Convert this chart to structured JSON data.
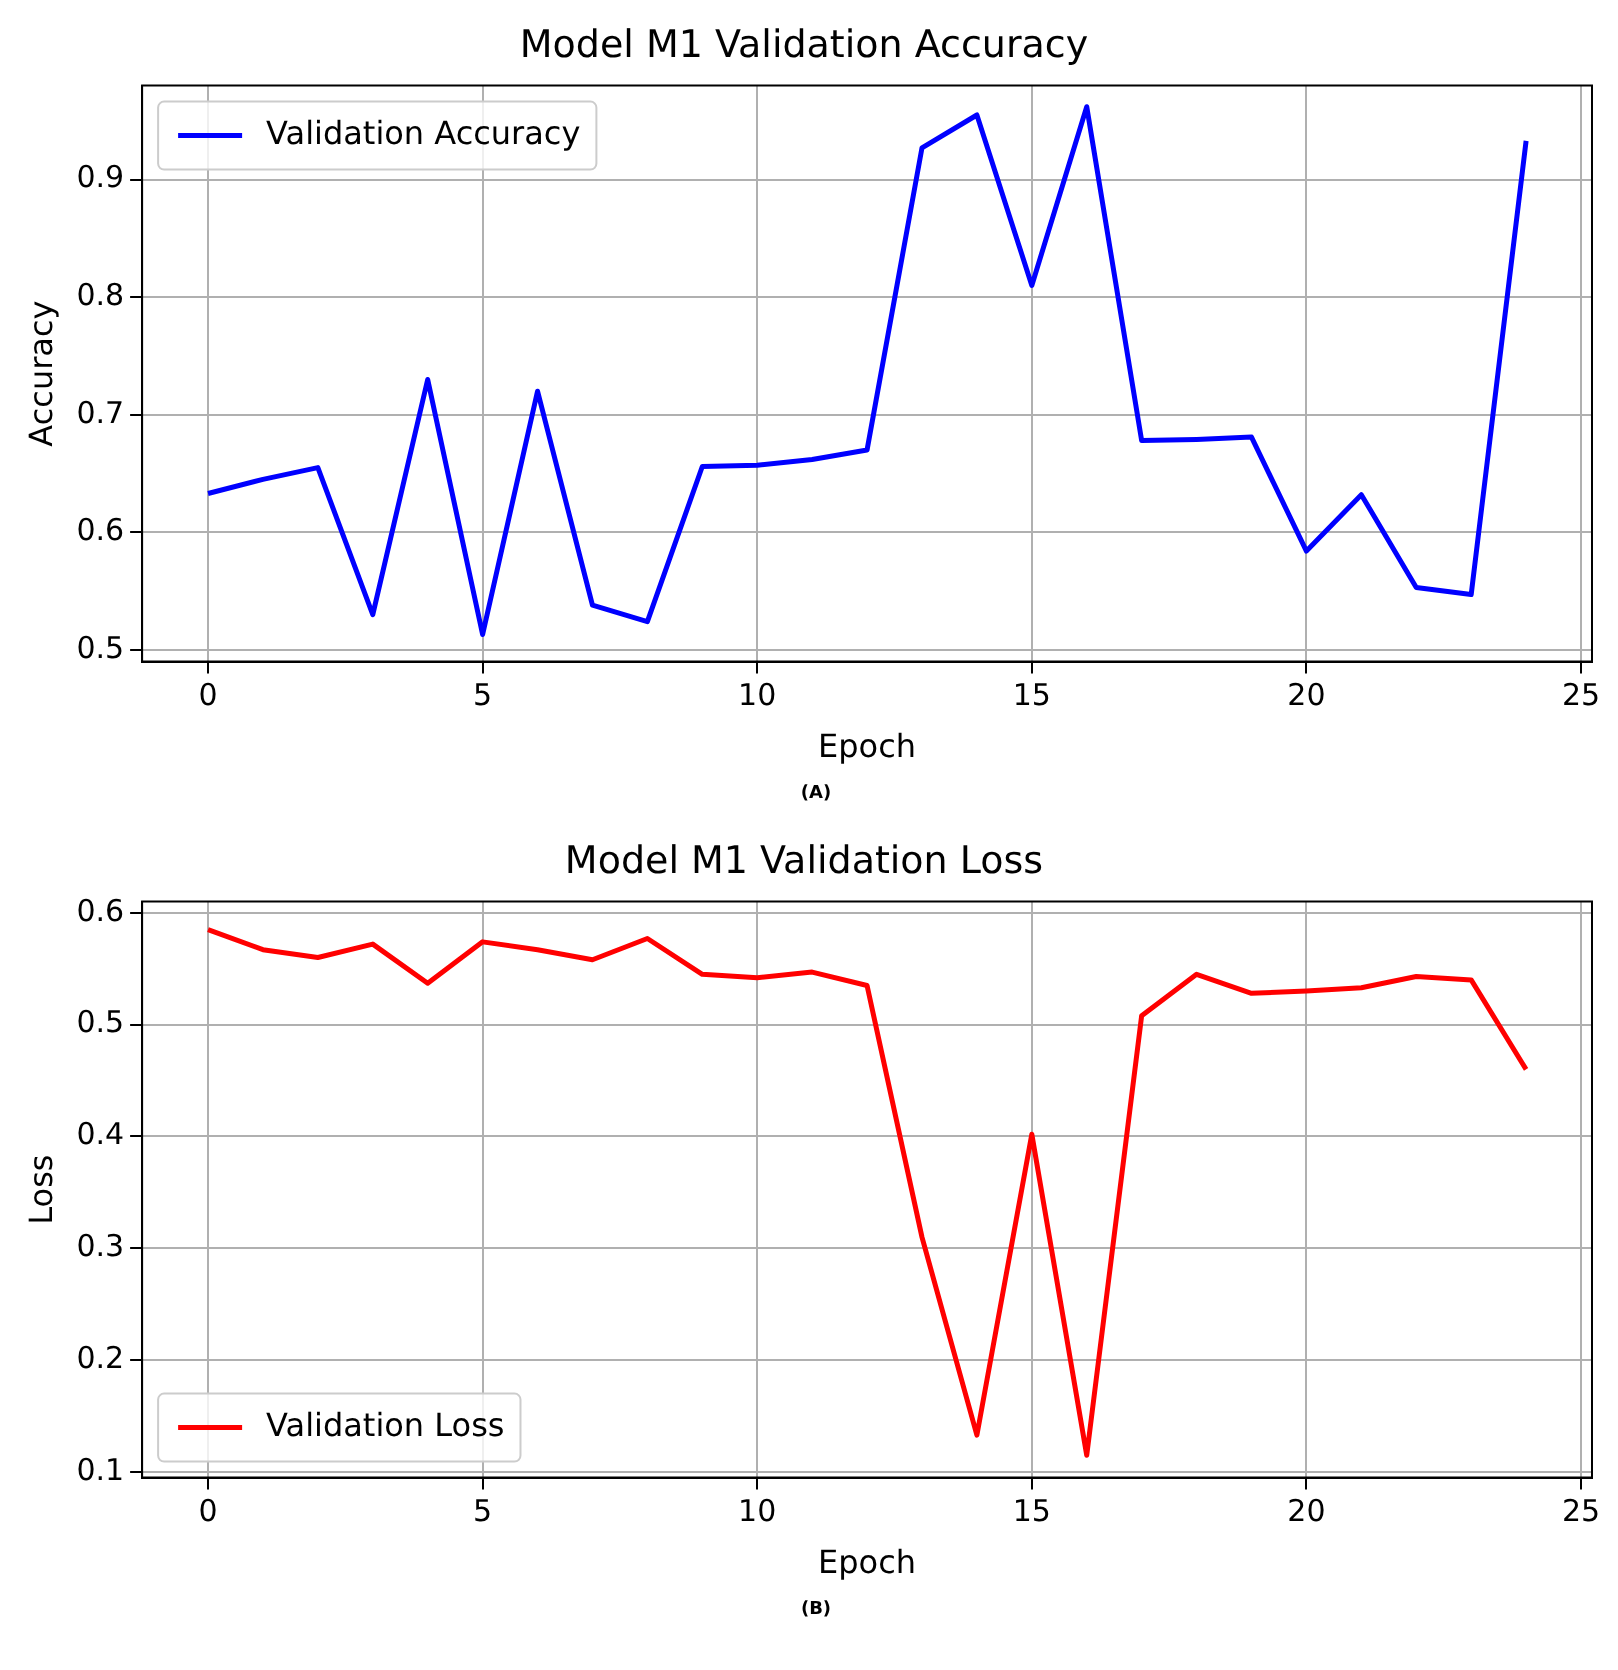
{
  "chart_data": [
    {
      "type": "line",
      "title": "Model M1 Validation Accuracy",
      "xlabel": "Epoch",
      "ylabel": "Accuracy",
      "annotations": [
        "(A)"
      ],
      "x": [
        0,
        1,
        2,
        3,
        4,
        5,
        6,
        7,
        8,
        9,
        10,
        11,
        12,
        13,
        14,
        15,
        16,
        17,
        18,
        19,
        20,
        21,
        22,
        23,
        24
      ],
      "series": [
        {
          "name": "Validation Accuracy",
          "color": "#0000ff",
          "values": [
            0.633,
            0.645,
            0.655,
            0.53,
            0.73,
            0.513,
            0.72,
            0.538,
            0.524,
            0.656,
            0.657,
            0.662,
            0.67,
            0.927,
            0.955,
            0.81,
            0.962,
            0.678,
            0.679,
            0.681,
            0.584,
            0.632,
            0.553,
            0.547,
            0.933
          ]
        }
      ],
      "xlim": [
        -1.2,
        25.2
      ],
      "xticks": [
        0,
        5,
        10,
        15,
        20,
        25
      ],
      "ylim": [
        0.49,
        0.98
      ],
      "yticks": [
        0.5,
        0.6,
        0.7,
        0.8,
        0.9
      ],
      "grid": true,
      "legend": "top left",
      "marker": "none",
      "line_style": "solid"
    },
    {
      "type": "line",
      "title": "Model M1 Validation Loss",
      "xlabel": "Epoch",
      "ylabel": "Loss",
      "annotations": [
        "(B)"
      ],
      "x": [
        0,
        1,
        2,
        3,
        4,
        5,
        6,
        7,
        8,
        9,
        10,
        11,
        12,
        13,
        14,
        15,
        16,
        17,
        18,
        19,
        20,
        21,
        22,
        23,
        24
      ],
      "series": [
        {
          "name": "Validation Loss",
          "color": "#ff0000",
          "values": [
            0.585,
            0.567,
            0.56,
            0.572,
            0.537,
            0.574,
            0.567,
            0.558,
            0.577,
            0.545,
            0.542,
            0.547,
            0.535,
            0.31,
            0.133,
            0.402,
            0.115,
            0.508,
            0.545,
            0.528,
            0.53,
            0.533,
            0.543,
            0.54,
            0.46
          ]
        }
      ],
      "xlim": [
        -1.2,
        25.2
      ],
      "xticks": [
        0,
        5,
        10,
        15,
        20,
        25
      ],
      "ylim": [
        0.095,
        0.61
      ],
      "yticks": [
        0.1,
        0.2,
        0.3,
        0.4,
        0.5,
        0.6
      ],
      "grid": true,
      "legend": "bottom left",
      "marker": "none",
      "line_style": "solid"
    }
  ]
}
